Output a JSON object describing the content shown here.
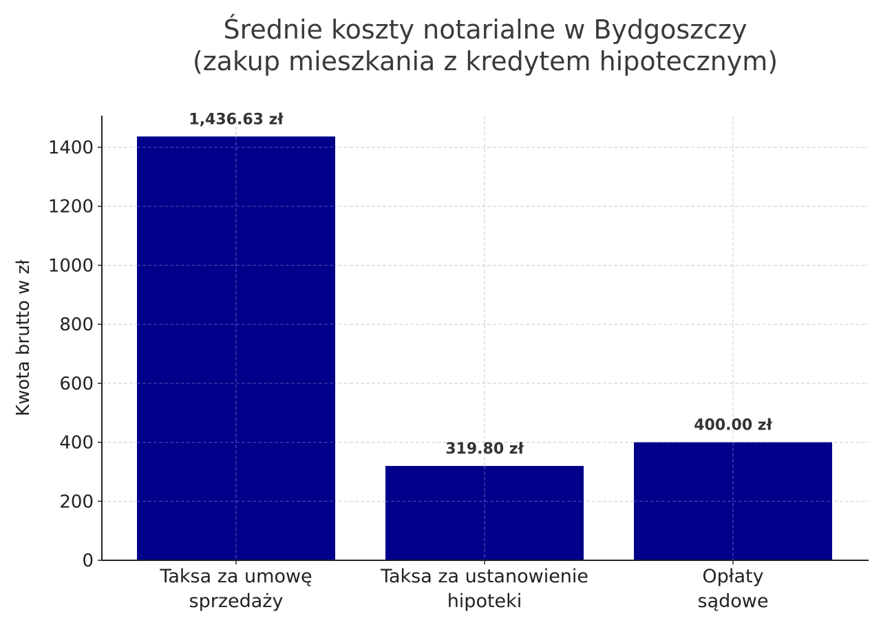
{
  "chart_data": {
    "type": "bar",
    "title": "Średnie koszty notarialne w Bydgoszczy",
    "subtitle": "(zakup mieszkania z kredytem hipotecznym)",
    "xlabel": "",
    "ylabel": "Kwota brutto w zł",
    "categories": [
      "Taksa za umowę sprzedaży",
      "Taksa za ustanowienie hipoteki",
      "Opłaty sądowe"
    ],
    "category_lines": [
      [
        "Taksa za umowę",
        "sprzedaży"
      ],
      [
        "Taksa za ustanowienie",
        "hipoteki"
      ],
      [
        "Opłaty",
        "sądowe"
      ]
    ],
    "values": [
      1436.63,
      319.8,
      400.0
    ],
    "data_labels": [
      "1,436.63 zł",
      "319.80 zł",
      "400.00 zł"
    ],
    "ylim": [
      0,
      1508
    ],
    "yticks": [
      0,
      200,
      400,
      600,
      800,
      1000,
      1200,
      1400
    ],
    "grid": true,
    "bar_color": "#00008b",
    "legend": null
  }
}
